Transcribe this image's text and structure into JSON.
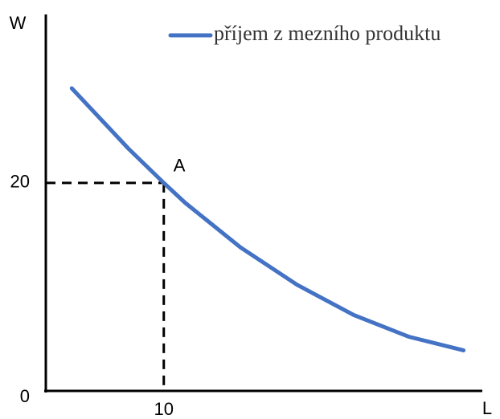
{
  "chart_data": {
    "type": "line",
    "x_label": "L",
    "y_label": "W",
    "x": [
      2.2,
      7.0,
      10,
      11.8,
      16.5,
      21.3,
      26.1,
      30.8,
      35.4
    ],
    "series": [
      {
        "name": "příjem z mezního produktu",
        "color": "#4472c4",
        "values": [
          29.1,
          23.3,
          20,
          18.1,
          13.8,
          10.2,
          7.3,
          5.2,
          3.9
        ]
      }
    ],
    "xlim": [
      0,
      37
    ],
    "ylim": [
      0,
      36.2
    ],
    "xticks": [
      10
    ],
    "yticks": [
      0,
      20
    ],
    "annotation": {
      "label": "A",
      "x": 10,
      "y": 20
    },
    "legend": "top-right",
    "grid": false
  }
}
